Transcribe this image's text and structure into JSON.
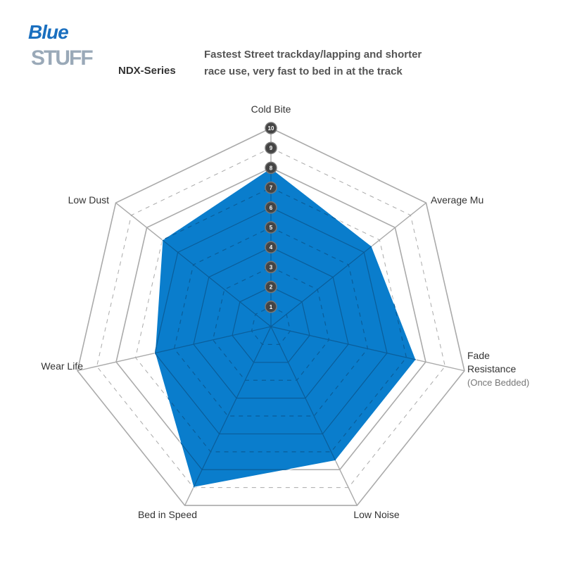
{
  "header": {
    "logo_text": [
      "Blue",
      "STUFF"
    ],
    "series": "NDX-Series",
    "description": [
      "Fastest Street trackday/lapping and shorter",
      "race use, very fast to bed in at the track"
    ]
  },
  "chart_data": {
    "type": "radar",
    "axes": [
      "Cold Bite",
      "Average Mu",
      "Fade Resistance",
      "Low Noise",
      "Bed in Speed",
      "Wear Life",
      "Low Dust"
    ],
    "axis_note": {
      "Fade Resistance": "(Once Bedded)"
    },
    "values": [
      8,
      6.5,
      7.5,
      7.5,
      9,
      6,
      7
    ],
    "range": [
      0,
      10
    ],
    "tick_labels": [
      "1",
      "2",
      "3",
      "4",
      "5",
      "6",
      "7",
      "8",
      "9",
      "10"
    ],
    "fill_color": "#0a7dcc",
    "grid": true
  }
}
